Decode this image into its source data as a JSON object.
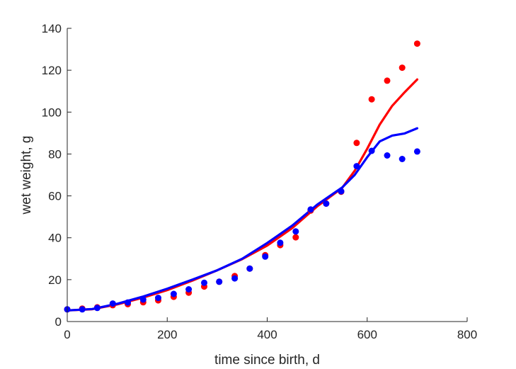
{
  "chart_data": {
    "type": "scatter",
    "xlabel": "time since birth, d",
    "ylabel": "wet weight, g",
    "xlim": [
      0,
      800
    ],
    "ylim": [
      0,
      140
    ],
    "xticks": [
      "0",
      "200",
      "400",
      "600",
      "800"
    ],
    "yticks": [
      "0",
      "20",
      "40",
      "60",
      "80",
      "100",
      "120",
      "140"
    ],
    "grid": false,
    "legend": "none",
    "series": [
      {
        "color": "#ff0000",
        "points": [
          [
            0,
            5.8
          ],
          [
            30,
            6.2
          ],
          [
            60,
            6.8
          ],
          [
            91,
            7.8
          ],
          [
            121,
            8.3
          ],
          [
            152,
            9.2
          ],
          [
            182,
            10.1
          ],
          [
            213,
            11.8
          ],
          [
            243,
            13.8
          ],
          [
            274,
            16.7
          ],
          [
            304,
            19.0
          ],
          [
            335,
            21.7
          ],
          [
            365,
            25.3
          ],
          [
            396,
            31.7
          ],
          [
            426,
            36.5
          ],
          [
            457,
            40.2
          ],
          [
            487,
            53.0
          ],
          [
            518,
            56.3
          ],
          [
            548,
            62.0
          ],
          [
            579,
            85.3
          ],
          [
            609,
            106.1
          ],
          [
            640,
            115.0
          ],
          [
            670,
            121.2
          ],
          [
            700,
            132.7
          ]
        ],
        "fit": [
          [
            0,
            5.3
          ],
          [
            50,
            5.9
          ],
          [
            100,
            8.2
          ],
          [
            150,
            11.3
          ],
          [
            200,
            15.0
          ],
          [
            250,
            19.5
          ],
          [
            300,
            24.5
          ],
          [
            350,
            29.8
          ],
          [
            400,
            36.3
          ],
          [
            450,
            44.6
          ],
          [
            500,
            55.0
          ],
          [
            550,
            63.8
          ],
          [
            575,
            72.0
          ],
          [
            600,
            82.5
          ],
          [
            625,
            94.0
          ],
          [
            650,
            103.0
          ],
          [
            675,
            109.5
          ],
          [
            700,
            115.6
          ]
        ]
      },
      {
        "color": "#0000ff",
        "points": [
          [
            0,
            5.8
          ],
          [
            30,
            5.8
          ],
          [
            60,
            6.5
          ],
          [
            91,
            8.6
          ],
          [
            121,
            9.1
          ],
          [
            152,
            10.5
          ],
          [
            182,
            11.3
          ],
          [
            213,
            13.2
          ],
          [
            243,
            15.4
          ],
          [
            274,
            18.5
          ],
          [
            304,
            19.0
          ],
          [
            335,
            20.6
          ],
          [
            365,
            25.3
          ],
          [
            396,
            31.0
          ],
          [
            426,
            37.6
          ],
          [
            457,
            43.0
          ],
          [
            487,
            53.5
          ],
          [
            518,
            56.3
          ],
          [
            548,
            62.2
          ],
          [
            579,
            74.2
          ],
          [
            609,
            81.5
          ],
          [
            640,
            79.3
          ],
          [
            670,
            77.6
          ],
          [
            700,
            81.2
          ]
        ],
        "fit": [
          [
            0,
            5.3
          ],
          [
            50,
            6.0
          ],
          [
            100,
            8.5
          ],
          [
            150,
            11.8
          ],
          [
            200,
            15.7
          ],
          [
            250,
            20.0
          ],
          [
            300,
            24.5
          ],
          [
            350,
            30.0
          ],
          [
            400,
            37.5
          ],
          [
            450,
            45.8
          ],
          [
            500,
            55.8
          ],
          [
            550,
            64.0
          ],
          [
            575,
            70.0
          ],
          [
            600,
            78.5
          ],
          [
            625,
            86.0
          ],
          [
            650,
            88.8
          ],
          [
            675,
            89.8
          ],
          [
            700,
            92.3
          ]
        ]
      }
    ]
  }
}
